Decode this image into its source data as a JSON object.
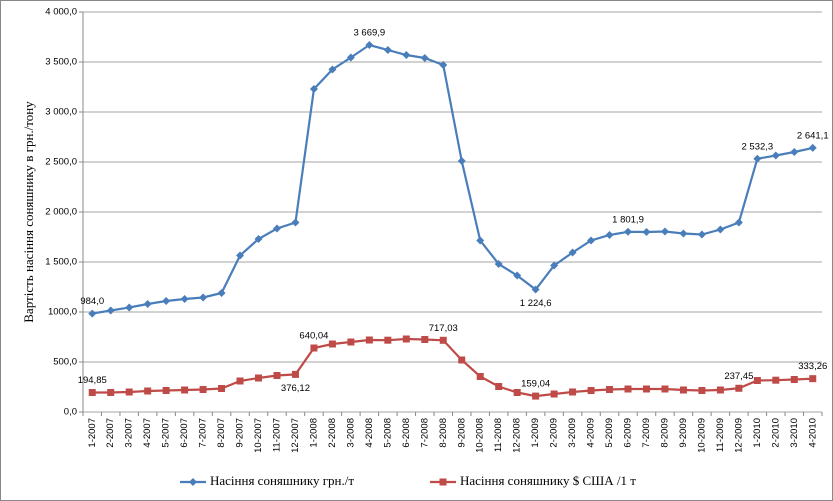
{
  "chart_data": {
    "type": "line",
    "y_label": "Вартість насіння соняшнику в грн./тону",
    "categories": [
      "1-2007",
      "2-2007",
      "3-2007",
      "4-2007",
      "5-2007",
      "6-2007",
      "7-2007",
      "8-2007",
      "9-2007",
      "10-2007",
      "11-2007",
      "12-2007",
      "1-2008",
      "2-2008",
      "3-2008",
      "4-2008",
      "5-2008",
      "6-2008",
      "7-2008",
      "8-2008",
      "9-2008",
      "10-2008",
      "11-2008",
      "12-2008",
      "1-2009",
      "2-2009",
      "3-2009",
      "4-2009",
      "5-2009",
      "6-2009",
      "7-2009",
      "8-2009",
      "9-2009",
      "10-2009",
      "11-2009",
      "12-2009",
      "1-2010",
      "2-2010",
      "3-2010",
      "4-2010"
    ],
    "series": [
      {
        "name": "Насіння соняшнику грн./т",
        "color": "#4a7ebb",
        "marker": "diamond",
        "values": [
          984.0,
          1015,
          1045,
          1080,
          1110,
          1130,
          1145,
          1190,
          1565,
          1730,
          1835,
          1895,
          3230,
          3425,
          3545,
          3669.9,
          3620,
          3570,
          3540,
          3470,
          2510,
          1715,
          1480,
          1365,
          1224.6,
          1465,
          1595,
          1715,
          1770,
          1801.9,
          1800,
          1805,
          1785,
          1775,
          1825,
          1895,
          2532.3,
          2565,
          2600,
          2641.1
        ],
        "value_labels": [
          "984,0",
          null,
          null,
          null,
          null,
          null,
          null,
          null,
          null,
          null,
          null,
          null,
          null,
          null,
          null,
          "3 669,9",
          null,
          null,
          null,
          null,
          null,
          null,
          null,
          null,
          "1 224,6",
          null,
          null,
          null,
          null,
          "1 801,9",
          null,
          null,
          null,
          null,
          null,
          null,
          "2 532,3",
          null,
          null,
          "2 641,1"
        ]
      },
      {
        "name": "Насіння соняшнику $ США /1 т",
        "color": "#be4b48",
        "marker": "square",
        "values": [
          194.85,
          195,
          200,
          210,
          215,
          220,
          225,
          235,
          310,
          340,
          365,
          376.12,
          640.04,
          680,
          700,
          720,
          718,
          730,
          725,
          717.03,
          520,
          355,
          255,
          195,
          159.04,
          180,
          200,
          215,
          225,
          230,
          230,
          230,
          220,
          215,
          220,
          237.45,
          315,
          318,
          325,
          333.26
        ],
        "value_labels": [
          "194,85",
          null,
          null,
          null,
          null,
          null,
          null,
          null,
          null,
          null,
          null,
          "376,12",
          "640,04",
          null,
          null,
          null,
          null,
          null,
          null,
          "717,03",
          null,
          null,
          null,
          null,
          "159,04",
          null,
          null,
          null,
          null,
          null,
          null,
          null,
          null,
          null,
          null,
          "237,45",
          null,
          null,
          null,
          "333,26"
        ]
      }
    ],
    "ylim": [
      0,
      4000
    ],
    "yticks": [
      {
        "value": 0,
        "label": "0,0"
      },
      {
        "value": 500,
        "label": "500,0"
      },
      {
        "value": 1000,
        "label": "1000,0"
      },
      {
        "value": 1500,
        "label": "1 500,0"
      },
      {
        "value": 2000,
        "label": "2 000,0"
      },
      {
        "value": 2500,
        "label": "2 500,0"
      },
      {
        "value": 3000,
        "label": "3 000,0"
      },
      {
        "value": 3500,
        "label": "3 500,0"
      },
      {
        "value": 4000,
        "label": "4 000,0"
      }
    ],
    "legend": "bottom"
  }
}
